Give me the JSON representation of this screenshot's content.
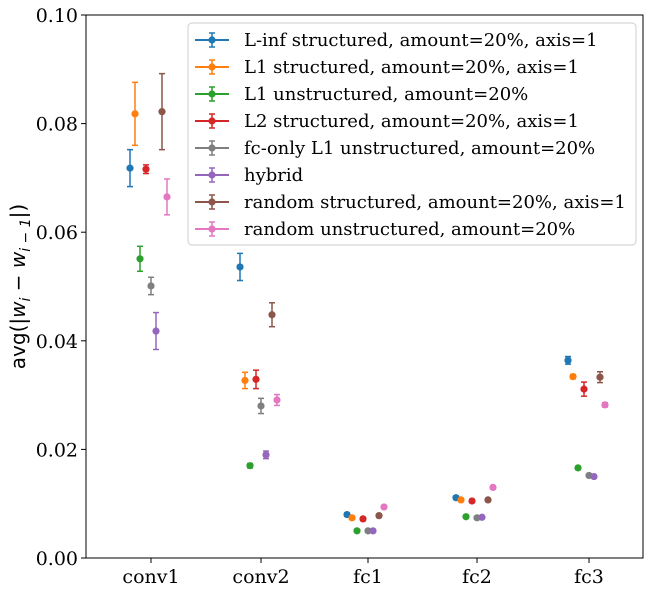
{
  "chart_data": {
    "type": "scatter",
    "title": "",
    "xlabel": "",
    "ylabel": "avg(|w_i − w_{i−1}|)",
    "categories": [
      "conv1",
      "conv2",
      "fc1",
      "fc2",
      "fc3"
    ],
    "ylim": [
      0.0,
      0.1
    ],
    "yticks": [
      "0.00",
      "0.02",
      "0.04",
      "0.06",
      "0.08",
      "0.10"
    ],
    "grid": false,
    "legend_position": "top-right",
    "series": [
      {
        "name": "L-inf structured, amount=20%, axis=1",
        "color": "#1f77b4",
        "values": [
          0.0718,
          0.0536,
          0.008,
          0.0111,
          0.0364
        ],
        "errors": [
          0.0034,
          0.0025,
          0.0003,
          0.0003,
          0.0007
        ]
      },
      {
        "name": "L1 structured, amount=20%, axis=1",
        "color": "#ff7f0e",
        "values": [
          0.0818,
          0.0327,
          0.0074,
          0.0107,
          0.0334
        ],
        "errors": [
          0.0058,
          0.0015,
          0.0003,
          0.0003,
          0.0004
        ]
      },
      {
        "name": "L1 unstructured, amount=20%",
        "color": "#2ca02c",
        "values": [
          0.0551,
          0.017,
          0.005,
          0.0076,
          0.0166
        ],
        "errors": [
          0.0023,
          0.0004,
          0.0002,
          0.0002,
          0.0003
        ]
      },
      {
        "name": "L2 structured, amount=20%, axis=1",
        "color": "#d62728",
        "values": [
          0.0716,
          0.0329,
          0.0072,
          0.0105,
          0.0311
        ],
        "errors": [
          0.0008,
          0.0017,
          0.0003,
          0.0003,
          0.0013
        ]
      },
      {
        "name": "fc-only L1 unstructured, amount=20%",
        "color": "#7f7f7f",
        "values": [
          0.0501,
          0.028,
          0.005,
          0.0074,
          0.0152
        ],
        "errors": [
          0.0016,
          0.0014,
          0.0002,
          0.0002,
          0.0002
        ]
      },
      {
        "name": "hybrid",
        "color": "#9467bd",
        "values": [
          0.0418,
          0.019,
          0.005,
          0.0075,
          0.015
        ],
        "errors": [
          0.0034,
          0.0007,
          0.0002,
          0.0002,
          0.0002
        ]
      },
      {
        "name": "random structured, amount=20%, axis=1",
        "color": "#8c564b",
        "values": [
          0.0822,
          0.0448,
          0.0078,
          0.0107,
          0.0333
        ],
        "errors": [
          0.007,
          0.0022,
          0.0003,
          0.0003,
          0.001
        ]
      },
      {
        "name": "random unstructured, amount=20%",
        "color": "#e377c2",
        "values": [
          0.0665,
          0.0291,
          0.0094,
          0.013,
          0.0282
        ],
        "errors": [
          0.0033,
          0.001,
          0.0003,
          0.0003,
          0.0004
        ]
      }
    ]
  }
}
